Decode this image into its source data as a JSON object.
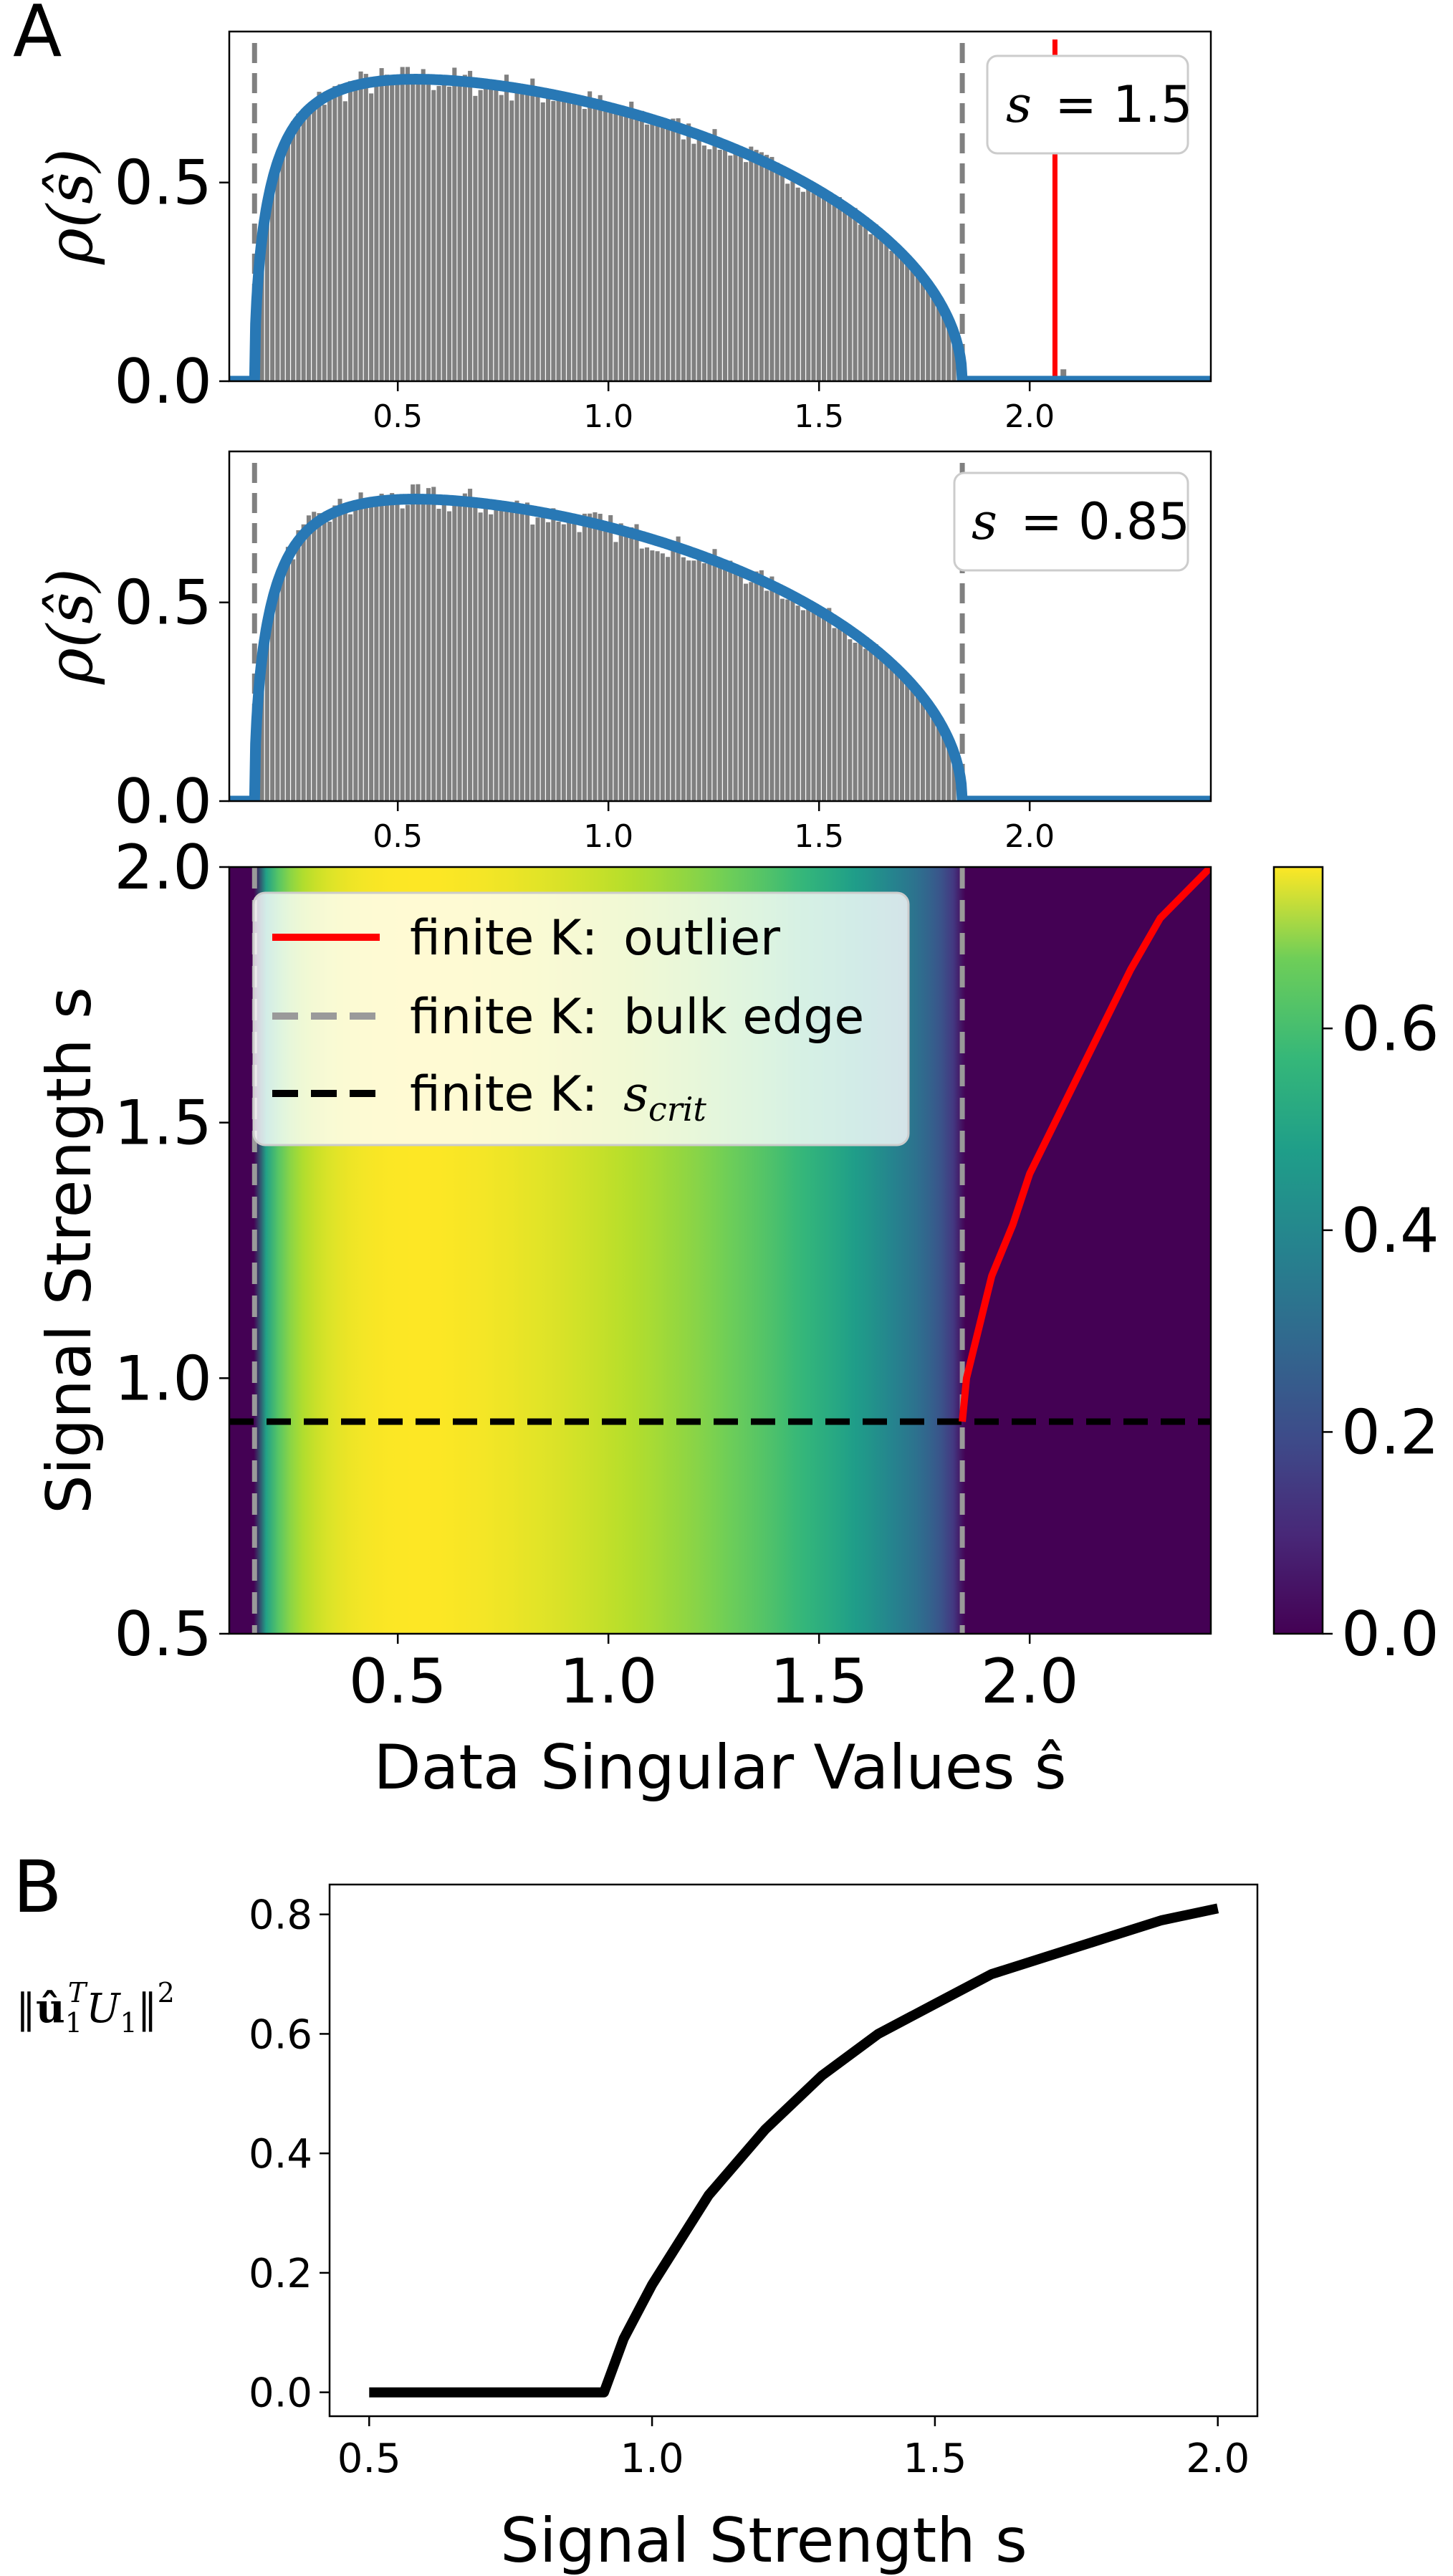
{
  "figure": {
    "panel_a_label": "A",
    "panel_b_label": "B"
  },
  "colors": {
    "hist": "#808080",
    "density": "#2878b5",
    "outlier": "#ff0000",
    "bulk_edge": "#808080",
    "scrit": "#000000"
  },
  "chart_data": [
    {
      "id": "hist_s15",
      "type": "bar",
      "annotation": "s = 1.5",
      "annotation_symbol": "s",
      "annotation_value": "= 1.5",
      "ylabel": "ρ(ŝ)",
      "xlim": [
        0.1,
        2.43
      ],
      "ylim": [
        0,
        0.88
      ],
      "xticks": [
        "0.5",
        "1.0",
        "1.5",
        "2.0"
      ],
      "yticks": [
        "0.0",
        "0.5"
      ],
      "bulk_edges": [
        0.16,
        1.84
      ],
      "outlier_x": 2.06,
      "outlier_height": 0.86,
      "stray_bar_x": 2.08,
      "stray_bar_height": 0.03,
      "density_series": "Marchenko–Pastur singular value density",
      "peak_density": 0.76,
      "peak_location": 0.55
    },
    {
      "id": "hist_s085",
      "type": "bar",
      "annotation": "s = 0.85",
      "annotation_symbol": "s",
      "annotation_value": "= 0.85",
      "ylabel": "ρ(ŝ)",
      "xlim": [
        0.1,
        2.43
      ],
      "ylim": [
        0,
        0.88
      ],
      "xticks": [
        "0.5",
        "1.0",
        "1.5",
        "2.0"
      ],
      "yticks": [
        "0.0",
        "0.5"
      ],
      "bulk_edges": [
        0.16,
        1.84
      ],
      "peak_density": 0.76,
      "peak_location": 0.55
    },
    {
      "id": "heatmap",
      "type": "heatmap",
      "xlabel": "Data Singular Values ŝ",
      "ylabel": "Signal Strength s",
      "xlim": [
        0.1,
        2.43
      ],
      "ylim": [
        0.5,
        2.0
      ],
      "xticks": [
        "0.5",
        "1.0",
        "1.5",
        "2.0"
      ],
      "yticks": [
        "0.5",
        "1.0",
        "1.5",
        "2.0"
      ],
      "colorbar_ticks": [
        "0.0",
        "0.2",
        "0.4",
        "0.6"
      ],
      "colorbar_range": [
        0,
        0.76
      ],
      "colormap": "viridis",
      "legend": [
        {
          "prefix": "finite K:",
          "label": "outlier",
          "style": "solid-red"
        },
        {
          "prefix": "finite K:",
          "label": "bulk edge",
          "style": "dashed-gray"
        },
        {
          "prefix": "finite K:",
          "label": "s",
          "subscript": "crit",
          "style": "dashed-black"
        }
      ],
      "bulk_edges": [
        0.16,
        1.84
      ],
      "s_crit": 0.915,
      "outlier_curve": {
        "s": [
          0.915,
          1.0,
          1.1,
          1.2,
          1.3,
          1.4,
          1.5,
          1.6,
          1.7,
          1.8,
          1.9,
          2.0
        ],
        "shat": [
          1.84,
          1.85,
          1.88,
          1.91,
          1.96,
          2.0,
          2.06,
          2.12,
          2.18,
          2.24,
          2.31,
          2.43
        ]
      }
    },
    {
      "id": "overlap",
      "type": "line",
      "xlabel": "Signal Strength s",
      "ylabel": "‖û₁ᵀU₁‖²",
      "ylabel_parts": {
        "pre": "‖",
        "vec": "û",
        "sub": "1",
        "sup": "T",
        "mid": "U",
        "sub2": "1",
        "post": "‖",
        "sup2": "2"
      },
      "xlim": [
        0.43,
        2.07
      ],
      "ylim": [
        -0.04,
        0.85
      ],
      "xticks": [
        "0.5",
        "1.0",
        "1.5",
        "2.0"
      ],
      "yticks": [
        "0.0",
        "0.2",
        "0.4",
        "0.6",
        "0.8"
      ],
      "x": [
        0.5,
        0.6,
        0.7,
        0.8,
        0.915,
        0.95,
        1.0,
        1.1,
        1.2,
        1.3,
        1.4,
        1.5,
        1.6,
        1.7,
        1.8,
        1.9,
        2.0
      ],
      "y": [
        0.0,
        0.0,
        0.0,
        0.0,
        0.0,
        0.09,
        0.18,
        0.33,
        0.44,
        0.53,
        0.6,
        0.65,
        0.7,
        0.73,
        0.76,
        0.79,
        0.81
      ]
    }
  ]
}
